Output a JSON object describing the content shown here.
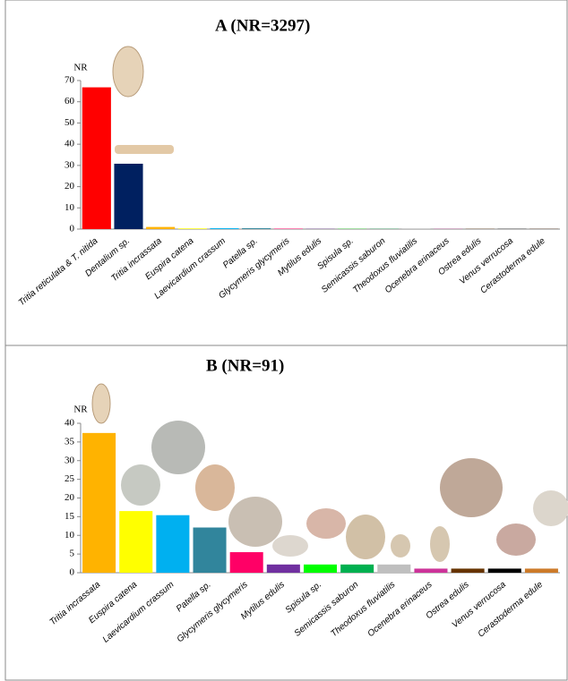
{
  "chart_data": [
    {
      "type": "bar",
      "title": "A (NR=3297)",
      "y_label": "NR",
      "categories": [
        "Tritia reticulata & T. nitida",
        "Dentalium sp.",
        "Tritia incrassata",
        "Euspira catena",
        "Laevicardium crassum",
        "Patella sp.",
        "Glycymeris glycymeris",
        "Mytilus edulis",
        "Spisula sp.",
        "Semicassis saburon",
        "Theodoxus fluviatilis",
        "Ocenebra erinaceus",
        "Ostrea edulis",
        "Venus verrucosa",
        "Cerastoderma edule"
      ],
      "values": [
        66.8,
        30.8,
        1.0,
        0.3,
        0.4,
        0.4,
        0.2,
        0.1,
        0.1,
        0.1,
        0.1,
        0.1,
        0.1,
        0.1,
        0.1
      ],
      "colors": [
        "#ff0000",
        "#002060",
        "#ffb300",
        "#ffff00",
        "#00b0f0",
        "#31859c",
        "#ff0066",
        "#7030a0",
        "#00ff00",
        "#00b050",
        "#bfbfbf",
        "#cc3399",
        "#663300",
        "#000000",
        "#4d2600"
      ],
      "ylim": [
        0,
        70
      ],
      "yticks": [
        0,
        10,
        20,
        30,
        40,
        50,
        60,
        70
      ]
    },
    {
      "type": "bar",
      "title": "B (NR=91)",
      "y_label": "NR",
      "categories": [
        "Tritia incrassata",
        "Euspira catena",
        "Laevicardium crassum",
        "Patella sp.",
        "Glycymeris glycymeris",
        "Mytilus edulis",
        "Spisula sp.",
        "Semicassis saburon",
        "Theodoxus fluviatilis",
        "Ocenebra erinaceus",
        "Ostrea edulis",
        "Venus verrucosa",
        "Cerastoderma edule"
      ],
      "values": [
        37.4,
        16.5,
        15.4,
        12.1,
        5.5,
        2.2,
        2.2,
        2.2,
        2.2,
        1.1,
        1.1,
        1.1,
        1.1
      ],
      "colors": [
        "#ffb300",
        "#ffff00",
        "#00b0f0",
        "#31859c",
        "#ff0066",
        "#7030a0",
        "#00ff00",
        "#00b050",
        "#bfbfbf",
        "#cc3399",
        "#663300",
        "#000000",
        "#cc7a29"
      ],
      "ylim": [
        0,
        40
      ],
      "yticks": [
        0,
        5,
        10,
        15,
        20,
        25,
        30,
        35,
        40
      ]
    }
  ]
}
